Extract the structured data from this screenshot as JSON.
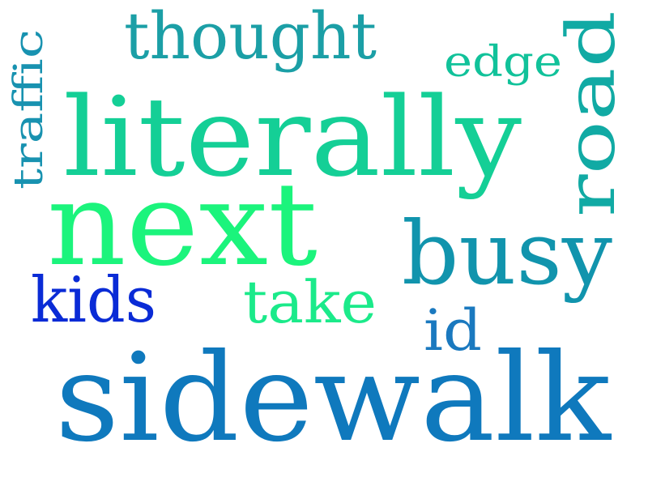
{
  "words": {
    "sidewalk": {
      "text": "sidewalk",
      "color": "#0f79bd"
    },
    "literally": {
      "text": "literally",
      "color": "#14cf96"
    },
    "next": {
      "text": "next",
      "color": "#1bf47c"
    },
    "busy": {
      "text": "busy",
      "color": "#1194ad"
    },
    "thought": {
      "text": "thought",
      "color": "#1b9fa6"
    },
    "road": {
      "text": "road",
      "color": "#11aaa4"
    },
    "traffic": {
      "text": "traffic",
      "color": "#1892b0"
    },
    "edge": {
      "text": "edge",
      "color": "#11c29a"
    },
    "kids": {
      "text": "kids",
      "color": "#0a2bd6"
    },
    "take": {
      "text": "take",
      "color": "#1bea8a"
    },
    "id": {
      "text": "id",
      "color": "#1a79bf"
    }
  }
}
